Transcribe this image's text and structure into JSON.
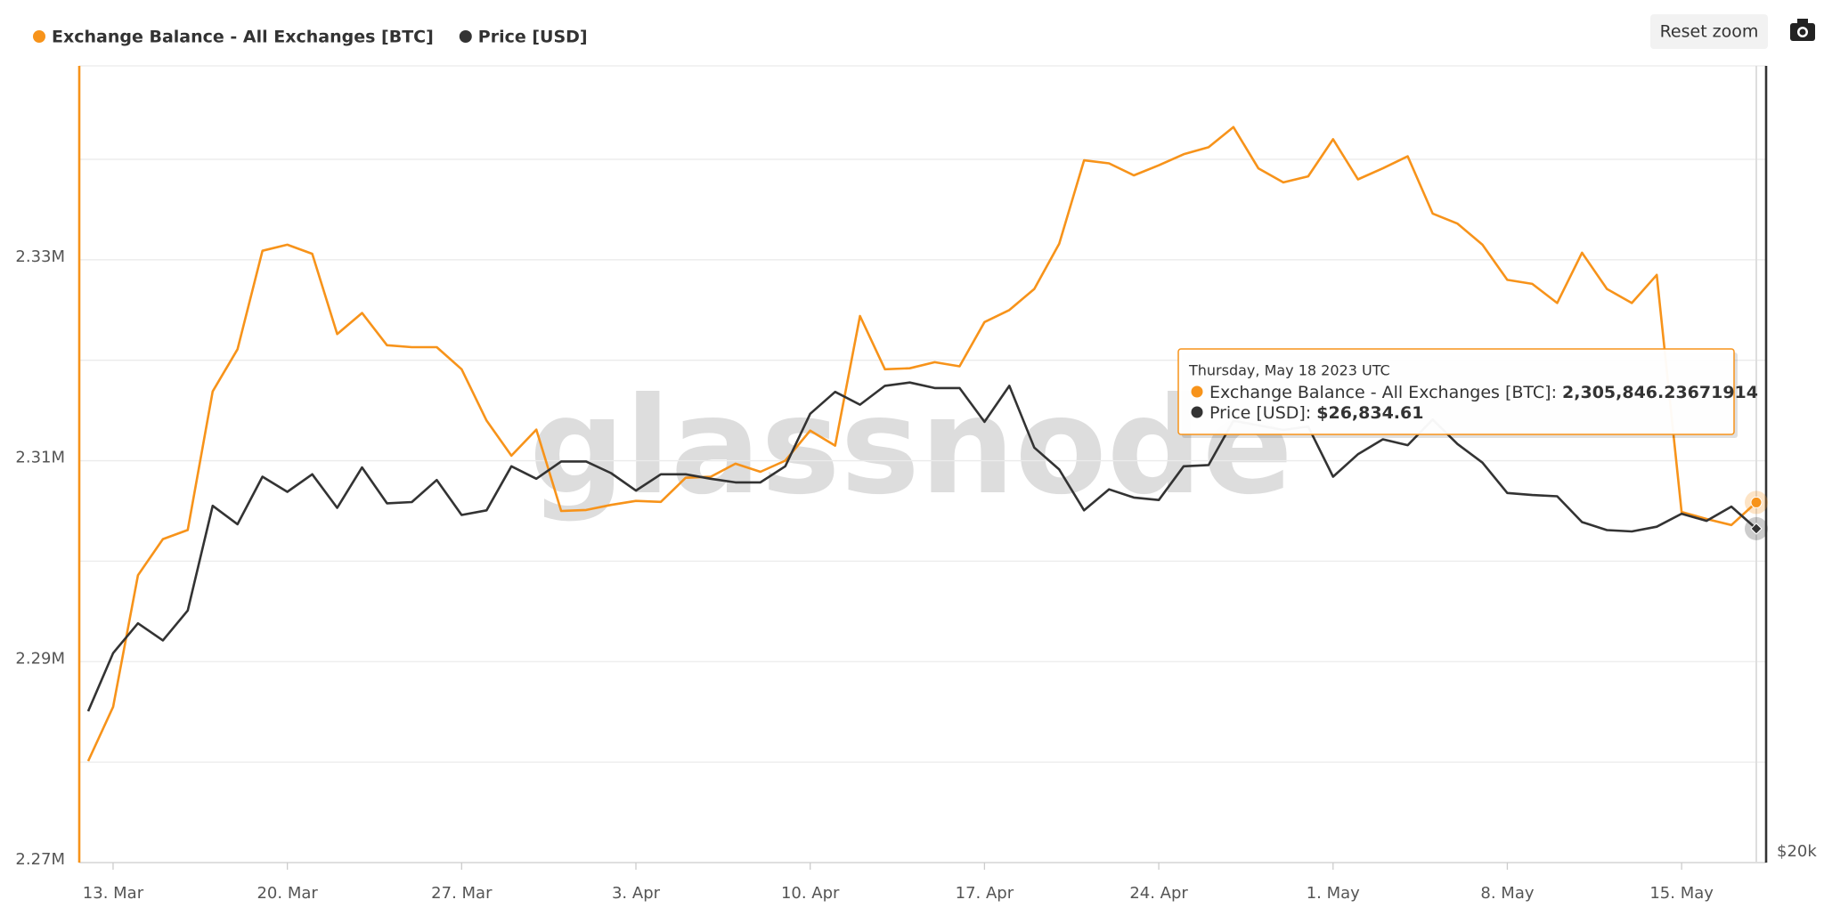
{
  "chart_data": {
    "type": "line",
    "x": [
      "2023-03-12",
      "2023-03-13",
      "2023-03-14",
      "2023-03-15",
      "2023-03-16",
      "2023-03-17",
      "2023-03-18",
      "2023-03-19",
      "2023-03-20",
      "2023-03-21",
      "2023-03-22",
      "2023-03-23",
      "2023-03-24",
      "2023-03-25",
      "2023-03-26",
      "2023-03-27",
      "2023-03-28",
      "2023-03-29",
      "2023-03-30",
      "2023-03-31",
      "2023-04-01",
      "2023-04-02",
      "2023-04-03",
      "2023-04-04",
      "2023-04-05",
      "2023-04-06",
      "2023-04-07",
      "2023-04-08",
      "2023-04-09",
      "2023-04-10",
      "2023-04-11",
      "2023-04-12",
      "2023-04-13",
      "2023-04-14",
      "2023-04-15",
      "2023-04-16",
      "2023-04-17",
      "2023-04-18",
      "2023-04-19",
      "2023-04-20",
      "2023-04-21",
      "2023-04-22",
      "2023-04-23",
      "2023-04-24",
      "2023-04-25",
      "2023-04-26",
      "2023-04-27",
      "2023-04-28",
      "2023-04-29",
      "2023-04-30",
      "2023-05-01",
      "2023-05-02",
      "2023-05-03",
      "2023-05-04",
      "2023-05-05",
      "2023-05-06",
      "2023-05-07",
      "2023-05-08",
      "2023-05-09",
      "2023-05-10",
      "2023-05-11",
      "2023-05-12",
      "2023-05-13",
      "2023-05-14",
      "2023-05-15",
      "2023-05-16",
      "2023-05-17",
      "2023-05-18"
    ],
    "series": [
      {
        "name": "Exchange Balance - All Exchanges [BTC]",
        "color": "#f7931a",
        "axis": "y",
        "values": [
          2280100,
          2285500,
          2298600,
          2302200,
          2303100,
          2316900,
          2321100,
          2330900,
          2331500,
          2330600,
          2322600,
          2324700,
          2321500,
          2321300,
          2321300,
          2319100,
          2314000,
          2310500,
          2313100,
          2305000,
          2305100,
          2305600,
          2306000,
          2305900,
          2308300,
          2308400,
          2309700,
          2308900,
          2310000,
          2313000,
          2311500,
          2324400,
          2319100,
          2319200,
          2319800,
          2319400,
          2323800,
          2325000,
          2327100,
          2331600,
          2339900,
          2339600,
          2338400,
          2339400,
          2340500,
          2341200,
          2343200,
          2339100,
          2337700,
          2338300,
          2342000,
          2338000,
          2339100,
          2340300,
          2334600,
          2333600,
          2331500,
          2328000,
          2327600,
          2325700,
          2330700,
          2327100,
          2325700,
          2328500,
          2304900,
          2304200,
          2303600,
          2305846.23671914
        ]
      },
      {
        "name": "Price [USD]",
        "color": "#333333",
        "axis": "y2",
        "values": [
          22850,
          24050,
          24690,
          24320,
          24970,
          27380,
          26940,
          28090,
          27720,
          28150,
          27330,
          28320,
          27440,
          27470,
          28010,
          27160,
          27270,
          28350,
          28040,
          28470,
          28470,
          28180,
          27750,
          28150,
          28150,
          28040,
          27950,
          27950,
          28350,
          29690,
          30270,
          29930,
          30430,
          30520,
          30370,
          30370,
          29480,
          30430,
          28820,
          28270,
          27270,
          27780,
          27580,
          27520,
          28350,
          28380,
          29510,
          29390,
          29270,
          29360,
          28090,
          28650,
          29030,
          28880,
          29540,
          28910,
          28440,
          27690,
          27640,
          27610,
          26990,
          26800,
          26770,
          26880,
          27190,
          27020,
          27360,
          26834.61
        ]
      }
    ],
    "xlim": [
      "2023-03-12",
      "2023-05-18"
    ],
    "xticks": [
      {
        "value": "2023-03-13",
        "label": "13. Mar"
      },
      {
        "value": "2023-03-20",
        "label": "20. Mar"
      },
      {
        "value": "2023-03-27",
        "label": "27. Mar"
      },
      {
        "value": "2023-04-03",
        "label": "3. Apr"
      },
      {
        "value": "2023-04-10",
        "label": "10. Apr"
      },
      {
        "value": "2023-04-17",
        "label": "17. Apr"
      },
      {
        "value": "2023-04-24",
        "label": "24. Apr"
      },
      {
        "value": "2023-05-01",
        "label": "1. May"
      },
      {
        "value": "2023-05-08",
        "label": "8. May"
      },
      {
        "value": "2023-05-15",
        "label": "15. May"
      }
    ],
    "ylim": [
      2270000,
      2349300
    ],
    "yticks": [
      {
        "value": 2270000,
        "label": "2.27M"
      },
      {
        "value": 2290000,
        "label": "2.29M"
      },
      {
        "value": 2310000,
        "label": "2.31M"
      },
      {
        "value": 2330000,
        "label": "2.33M"
      }
    ],
    "ygrid": [
      2280000,
      2290000,
      2300000,
      2310000,
      2320000,
      2330000,
      2340000
    ],
    "y2lim": [
      20000,
      40330
    ],
    "y2log": true,
    "y2ticks": [
      {
        "value": 20000,
        "label": "$20k"
      }
    ],
    "grid": true,
    "legend": "top-left",
    "watermark": "glassnode",
    "reset_button": "Reset zoom",
    "tooltip": {
      "title": "Thursday, May 18 2023 UTC",
      "rows": [
        {
          "label": "Exchange Balance - All Exchanges [BTC]: ",
          "value": "2,305,846.23671914"
        },
        {
          "label": "Price [USD]: ",
          "value": "$26,834.61"
        }
      ]
    }
  }
}
